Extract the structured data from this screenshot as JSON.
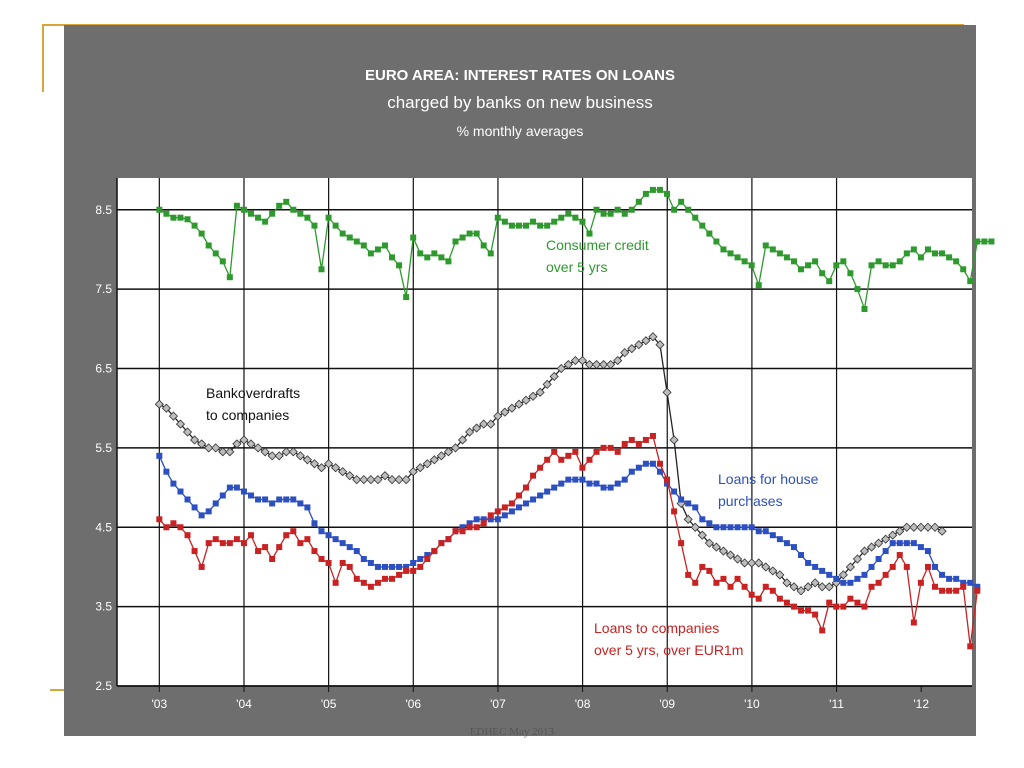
{
  "chart_data": {
    "type": "line",
    "title": "EURO AREA:  INTEREST RATES ON LOANS",
    "subtitle": "charged by banks on new  business",
    "units": "%  monthly averages",
    "ylim": [
      2.5,
      8.9
    ],
    "yticks": [
      2.5,
      3.5,
      4.5,
      5.5,
      6.5,
      7.5,
      8.5
    ],
    "xlim": [
      2002.5,
      2012.6
    ],
    "xtick_labels": [
      {
        "label": "'03",
        "x": 2003.0
      },
      {
        "label": "'04",
        "x": 2004.0
      },
      {
        "label": "'05",
        "x": 2005.0
      },
      {
        "label": "'06",
        "x": 2006.0
      },
      {
        "label": "'07",
        "x": 2007.0
      },
      {
        "label": "'08",
        "x": 2008.0
      },
      {
        "label": "'09",
        "x": 2009.0
      },
      {
        "label": "'10",
        "x": 2010.0
      },
      {
        "label": "'11",
        "x": 2011.0
      },
      {
        "label": "'12",
        "x": 2012.0
      }
    ],
    "vgrid_x": [
      2003.0,
      2004.0,
      2005.0,
      2006.0,
      2007.0,
      2008.0,
      2009.0,
      2010.0,
      2011.0
    ],
    "grid": true,
    "x_start": 2003.0,
    "x_step": 0.0833,
    "series": [
      {
        "name": "Consumer credit over 5 yrs",
        "color": "#2e9a2e",
        "marker": "square",
        "label_lines": [
          "Consumer credit",
          "over 5 yrs"
        ],
        "values": [
          8.5,
          8.45,
          8.4,
          8.4,
          8.38,
          8.3,
          8.2,
          8.05,
          7.95,
          7.85,
          7.65,
          8.55,
          8.5,
          8.45,
          8.4,
          8.35,
          8.45,
          8.55,
          8.6,
          8.5,
          8.45,
          8.4,
          8.3,
          7.75,
          8.4,
          8.3,
          8.2,
          8.15,
          8.1,
          8.05,
          7.95,
          8.0,
          8.05,
          7.9,
          7.8,
          7.4,
          8.15,
          7.95,
          7.9,
          7.95,
          7.9,
          7.85,
          8.1,
          8.15,
          8.2,
          8.2,
          8.05,
          7.95,
          8.4,
          8.35,
          8.3,
          8.3,
          8.3,
          8.35,
          8.3,
          8.3,
          8.35,
          8.4,
          8.45,
          8.4,
          8.35,
          8.2,
          8.5,
          8.45,
          8.45,
          8.5,
          8.45,
          8.5,
          8.6,
          8.7,
          8.75,
          8.75,
          8.7,
          8.5,
          8.6,
          8.5,
          8.4,
          8.3,
          8.2,
          8.1,
          8.0,
          7.95,
          7.9,
          7.85,
          7.8,
          7.55,
          8.05,
          8.0,
          7.95,
          7.9,
          7.85,
          7.75,
          7.8,
          7.85,
          7.7,
          7.6,
          7.8,
          7.85,
          7.7,
          7.5,
          7.25,
          7.8,
          7.85,
          7.8,
          7.8,
          7.85,
          7.95,
          8.0,
          7.9,
          8.0,
          7.95,
          7.95,
          7.9,
          7.85,
          7.75,
          7.6,
          8.1,
          8.1,
          8.1
        ]
      },
      {
        "name": "Bankoverdrafts to companies",
        "color": "#222222",
        "marker": "diamond",
        "label_lines": [
          "Bankoverdrafts",
          "to companies"
        ],
        "values": [
          6.05,
          6.0,
          5.9,
          5.8,
          5.7,
          5.6,
          5.55,
          5.5,
          5.5,
          5.45,
          5.45,
          5.55,
          5.6,
          5.55,
          5.5,
          5.45,
          5.4,
          5.4,
          5.45,
          5.45,
          5.4,
          5.35,
          5.3,
          5.25,
          5.3,
          5.25,
          5.2,
          5.15,
          5.1,
          5.1,
          5.1,
          5.1,
          5.15,
          5.1,
          5.1,
          5.1,
          5.2,
          5.25,
          5.3,
          5.35,
          5.4,
          5.45,
          5.5,
          5.6,
          5.7,
          5.75,
          5.8,
          5.8,
          5.9,
          5.95,
          6.0,
          6.05,
          6.1,
          6.15,
          6.2,
          6.3,
          6.4,
          6.5,
          6.55,
          6.6,
          6.6,
          6.55,
          6.55,
          6.55,
          6.55,
          6.6,
          6.7,
          6.75,
          6.8,
          6.85,
          6.9,
          6.8,
          6.2,
          5.6,
          4.8,
          4.6,
          4.5,
          4.4,
          4.3,
          4.25,
          4.2,
          4.15,
          4.1,
          4.05,
          4.05,
          4.05,
          4.0,
          3.95,
          3.9,
          3.8,
          3.75,
          3.7,
          3.75,
          3.8,
          3.75,
          3.75,
          3.8,
          3.9,
          4.0,
          4.1,
          4.2,
          4.25,
          4.3,
          4.35,
          4.4,
          4.45,
          4.5,
          4.5,
          4.5,
          4.5,
          4.5,
          4.45
        ]
      },
      {
        "name": "Loans for house purchases",
        "color": "#2c4fc2",
        "marker": "square",
        "label_lines": [
          "Loans for house",
          "purchases"
        ],
        "values": [
          5.4,
          5.2,
          5.05,
          4.95,
          4.85,
          4.75,
          4.65,
          4.7,
          4.8,
          4.9,
          5.0,
          5.0,
          4.95,
          4.9,
          4.85,
          4.85,
          4.8,
          4.85,
          4.85,
          4.85,
          4.8,
          4.75,
          4.55,
          4.45,
          4.4,
          4.35,
          4.3,
          4.25,
          4.2,
          4.1,
          4.05,
          4.0,
          4.0,
          4.0,
          4.0,
          4.0,
          4.05,
          4.1,
          4.15,
          4.2,
          4.3,
          4.35,
          4.45,
          4.5,
          4.55,
          4.6,
          4.6,
          4.6,
          4.6,
          4.65,
          4.7,
          4.75,
          4.8,
          4.85,
          4.9,
          4.95,
          5.0,
          5.05,
          5.1,
          5.1,
          5.1,
          5.05,
          5.05,
          5.0,
          5.0,
          5.05,
          5.1,
          5.2,
          5.25,
          5.3,
          5.3,
          5.2,
          5.05,
          4.95,
          4.85,
          4.8,
          4.75,
          4.6,
          4.55,
          4.5,
          4.5,
          4.5,
          4.5,
          4.5,
          4.5,
          4.45,
          4.45,
          4.4,
          4.35,
          4.3,
          4.25,
          4.15,
          4.05,
          4.0,
          3.95,
          3.9,
          3.85,
          3.8,
          3.8,
          3.85,
          3.9,
          4.0,
          4.1,
          4.2,
          4.3,
          4.3,
          4.3,
          4.3,
          4.25,
          4.2,
          4.0,
          3.9,
          3.85,
          3.85,
          3.8,
          3.8,
          3.75
        ]
      },
      {
        "name": "Loans to companies over 5 yrs, over EUR1m",
        "color": "#c82222",
        "marker": "square",
        "label_lines": [
          "Loans to companies",
          "over 5 yrs, over EUR1m"
        ],
        "values": [
          4.6,
          4.5,
          4.55,
          4.5,
          4.4,
          4.2,
          4.0,
          4.3,
          4.35,
          4.3,
          4.3,
          4.35,
          4.3,
          4.4,
          4.2,
          4.25,
          4.1,
          4.25,
          4.4,
          4.45,
          4.3,
          4.35,
          4.2,
          4.1,
          4.05,
          3.8,
          4.05,
          4.0,
          3.85,
          3.8,
          3.75,
          3.8,
          3.85,
          3.85,
          3.9,
          3.95,
          3.95,
          4.0,
          4.1,
          4.2,
          4.3,
          4.35,
          4.45,
          4.45,
          4.5,
          4.5,
          4.55,
          4.65,
          4.7,
          4.75,
          4.8,
          4.9,
          5.0,
          5.15,
          5.25,
          5.35,
          5.45,
          5.35,
          5.4,
          5.45,
          5.25,
          5.35,
          5.45,
          5.5,
          5.5,
          5.45,
          5.55,
          5.6,
          5.55,
          5.6,
          5.65,
          5.3,
          5.1,
          4.7,
          4.3,
          3.9,
          3.8,
          4.0,
          3.95,
          3.8,
          3.85,
          3.75,
          3.85,
          3.75,
          3.65,
          3.6,
          3.75,
          3.7,
          3.6,
          3.55,
          3.5,
          3.45,
          3.45,
          3.4,
          3.2,
          3.55,
          3.5,
          3.5,
          3.6,
          3.55,
          3.5,
          3.75,
          3.8,
          3.9,
          4.0,
          4.15,
          4.0,
          3.3,
          3.8,
          4.0,
          3.75,
          3.7,
          3.7,
          3.7,
          3.75,
          3.0,
          3.7
        ]
      }
    ]
  },
  "footer": "EDHEC May 2013"
}
